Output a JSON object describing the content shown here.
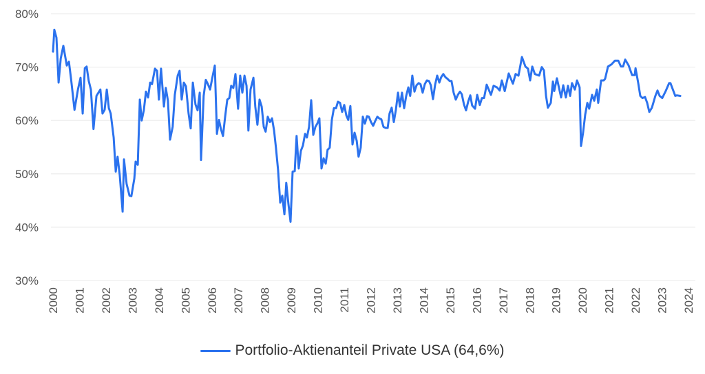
{
  "chart_data": {
    "type": "line",
    "title": "",
    "xlabel": "",
    "ylabel": "",
    "xlim": [
      2000,
      2024
    ],
    "ylim": [
      30,
      80
    ],
    "grid": true,
    "legend_position": "bottom-center",
    "y_ticks": [
      "30%",
      "40%",
      "50%",
      "60%",
      "70%",
      "80%"
    ],
    "y_tick_values": [
      30,
      40,
      50,
      60,
      70,
      80
    ],
    "x_ticks": [
      "2000",
      "2001",
      "2002",
      "2003",
      "2004",
      "2005",
      "2006",
      "2007",
      "2008",
      "2009",
      "2010",
      "2011",
      "2012",
      "2013",
      "2014",
      "2015",
      "2016",
      "2017",
      "2018",
      "2019",
      "2020",
      "2021",
      "2022",
      "2023",
      "2024"
    ],
    "series": [
      {
        "name": "Portfolio-Aktienanteil Private USA (64,6%)",
        "color": "#2b72ee",
        "points": [
          [
            2000.0,
            72.9
          ],
          [
            2000.05,
            77.0
          ],
          [
            2000.13,
            75.5
          ],
          [
            2000.21,
            67.1
          ],
          [
            2000.29,
            71.6
          ],
          [
            2000.39,
            74.0
          ],
          [
            2000.52,
            70.3
          ],
          [
            2000.6,
            71.0
          ],
          [
            2000.68,
            67.8
          ],
          [
            2000.81,
            62.0
          ],
          [
            2000.94,
            65.8
          ],
          [
            2001.04,
            68.0
          ],
          [
            2001.12,
            61.3
          ],
          [
            2001.2,
            69.8
          ],
          [
            2001.27,
            70.1
          ],
          [
            2001.35,
            67.4
          ],
          [
            2001.43,
            65.8
          ],
          [
            2001.53,
            58.4
          ],
          [
            2001.64,
            64.6
          ],
          [
            2001.79,
            65.8
          ],
          [
            2001.87,
            61.3
          ],
          [
            2001.95,
            62.0
          ],
          [
            2002.03,
            65.8
          ],
          [
            2002.11,
            62.3
          ],
          [
            2002.18,
            61.3
          ],
          [
            2002.29,
            56.8
          ],
          [
            2002.37,
            50.4
          ],
          [
            2002.44,
            53.2
          ],
          [
            2002.52,
            49.8
          ],
          [
            2002.63,
            42.9
          ],
          [
            2002.68,
            52.7
          ],
          [
            2002.78,
            48.1
          ],
          [
            2002.89,
            45.9
          ],
          [
            2002.96,
            45.8
          ],
          [
            2003.07,
            49.1
          ],
          [
            2003.12,
            52.3
          ],
          [
            2003.2,
            51.7
          ],
          [
            2003.28,
            63.9
          ],
          [
            2003.35,
            60.0
          ],
          [
            2003.43,
            61.9
          ],
          [
            2003.51,
            65.4
          ],
          [
            2003.59,
            64.3
          ],
          [
            2003.67,
            67.1
          ],
          [
            2003.74,
            66.8
          ],
          [
            2003.85,
            69.7
          ],
          [
            2003.93,
            69.3
          ],
          [
            2004.0,
            63.9
          ],
          [
            2004.08,
            69.7
          ],
          [
            2004.19,
            62.6
          ],
          [
            2004.26,
            66.1
          ],
          [
            2004.34,
            63.7
          ],
          [
            2004.42,
            56.4
          ],
          [
            2004.52,
            58.8
          ],
          [
            2004.6,
            64.8
          ],
          [
            2004.71,
            68.4
          ],
          [
            2004.78,
            69.3
          ],
          [
            2004.86,
            63.9
          ],
          [
            2004.94,
            67.1
          ],
          [
            2005.02,
            66.4
          ],
          [
            2005.12,
            61.3
          ],
          [
            2005.2,
            58.5
          ],
          [
            2005.28,
            67.1
          ],
          [
            2005.38,
            63.0
          ],
          [
            2005.46,
            61.9
          ],
          [
            2005.54,
            65.2
          ],
          [
            2005.59,
            52.6
          ],
          [
            2005.69,
            64.6
          ],
          [
            2005.77,
            67.6
          ],
          [
            2005.85,
            66.8
          ],
          [
            2005.93,
            65.8
          ],
          [
            2006.01,
            67.8
          ],
          [
            2006.11,
            70.3
          ],
          [
            2006.19,
            57.5
          ],
          [
            2006.27,
            60.1
          ],
          [
            2006.34,
            58.4
          ],
          [
            2006.42,
            57.1
          ],
          [
            2006.5,
            60.7
          ],
          [
            2006.58,
            63.9
          ],
          [
            2006.66,
            64.2
          ],
          [
            2006.73,
            66.5
          ],
          [
            2006.81,
            66.1
          ],
          [
            2006.89,
            68.7
          ],
          [
            2006.99,
            62.2
          ],
          [
            2007.07,
            68.4
          ],
          [
            2007.15,
            65.2
          ],
          [
            2007.23,
            68.4
          ],
          [
            2007.31,
            66.5
          ],
          [
            2007.38,
            58.1
          ],
          [
            2007.46,
            65.8
          ],
          [
            2007.57,
            68.0
          ],
          [
            2007.64,
            62.6
          ],
          [
            2007.72,
            59.2
          ],
          [
            2007.8,
            63.9
          ],
          [
            2007.88,
            62.6
          ],
          [
            2007.96,
            58.8
          ],
          [
            2008.03,
            57.9
          ],
          [
            2008.11,
            60.7
          ],
          [
            2008.19,
            59.7
          ],
          [
            2008.27,
            60.4
          ],
          [
            2008.35,
            58.1
          ],
          [
            2008.42,
            54.9
          ],
          [
            2008.5,
            50.7
          ],
          [
            2008.58,
            44.6
          ],
          [
            2008.66,
            45.9
          ],
          [
            2008.74,
            42.4
          ],
          [
            2008.81,
            48.3
          ],
          [
            2008.89,
            44.4
          ],
          [
            2008.97,
            41.0
          ],
          [
            2009.05,
            50.4
          ],
          [
            2009.13,
            50.5
          ],
          [
            2009.2,
            57.1
          ],
          [
            2009.28,
            51.0
          ],
          [
            2009.36,
            54.3
          ],
          [
            2009.44,
            55.3
          ],
          [
            2009.52,
            57.5
          ],
          [
            2009.59,
            56.8
          ],
          [
            2009.67,
            58.8
          ],
          [
            2009.75,
            63.8
          ],
          [
            2009.83,
            57.3
          ],
          [
            2009.91,
            58.8
          ],
          [
            2009.98,
            59.4
          ],
          [
            2010.06,
            60.4
          ],
          [
            2010.14,
            51.0
          ],
          [
            2010.22,
            52.9
          ],
          [
            2010.3,
            51.9
          ],
          [
            2010.37,
            54.5
          ],
          [
            2010.45,
            54.9
          ],
          [
            2010.53,
            60.1
          ],
          [
            2010.61,
            62.3
          ],
          [
            2010.69,
            62.3
          ],
          [
            2010.76,
            63.5
          ],
          [
            2010.84,
            63.3
          ],
          [
            2010.92,
            61.6
          ],
          [
            2011.0,
            62.9
          ],
          [
            2011.08,
            60.9
          ],
          [
            2011.15,
            60.1
          ],
          [
            2011.23,
            62.7
          ],
          [
            2011.31,
            55.5
          ],
          [
            2011.39,
            57.7
          ],
          [
            2011.47,
            56.2
          ],
          [
            2011.54,
            53.2
          ],
          [
            2011.62,
            54.9
          ],
          [
            2011.7,
            60.7
          ],
          [
            2011.78,
            59.4
          ],
          [
            2011.86,
            60.8
          ],
          [
            2011.93,
            60.7
          ],
          [
            2012.01,
            59.7
          ],
          [
            2012.09,
            59.0
          ],
          [
            2012.17,
            59.9
          ],
          [
            2012.25,
            60.7
          ],
          [
            2012.32,
            60.4
          ],
          [
            2012.4,
            60.2
          ],
          [
            2012.48,
            58.8
          ],
          [
            2012.56,
            58.6
          ],
          [
            2012.64,
            58.6
          ],
          [
            2012.71,
            61.3
          ],
          [
            2012.79,
            62.4
          ],
          [
            2012.87,
            59.7
          ],
          [
            2012.95,
            62.0
          ],
          [
            2013.03,
            65.2
          ],
          [
            2013.1,
            62.6
          ],
          [
            2013.18,
            65.2
          ],
          [
            2013.26,
            62.3
          ],
          [
            2013.34,
            64.6
          ],
          [
            2013.42,
            66.2
          ],
          [
            2013.49,
            64.6
          ],
          [
            2013.57,
            68.4
          ],
          [
            2013.65,
            65.4
          ],
          [
            2013.73,
            66.6
          ],
          [
            2013.81,
            67.0
          ],
          [
            2013.88,
            66.8
          ],
          [
            2013.96,
            65.2
          ],
          [
            2014.04,
            66.8
          ],
          [
            2014.12,
            67.5
          ],
          [
            2014.2,
            67.4
          ],
          [
            2014.27,
            66.6
          ],
          [
            2014.35,
            64.0
          ],
          [
            2014.43,
            66.7
          ],
          [
            2014.51,
            68.4
          ],
          [
            2014.59,
            67.1
          ],
          [
            2014.66,
            68.1
          ],
          [
            2014.74,
            68.7
          ],
          [
            2014.82,
            68.1
          ],
          [
            2014.9,
            67.8
          ],
          [
            2014.98,
            67.4
          ],
          [
            2015.05,
            67.4
          ],
          [
            2015.13,
            65.2
          ],
          [
            2015.21,
            63.9
          ],
          [
            2015.29,
            64.8
          ],
          [
            2015.37,
            65.4
          ],
          [
            2015.44,
            64.9
          ],
          [
            2015.52,
            63.0
          ],
          [
            2015.6,
            61.9
          ],
          [
            2015.68,
            63.5
          ],
          [
            2015.76,
            64.7
          ],
          [
            2015.83,
            62.8
          ],
          [
            2015.94,
            62.2
          ],
          [
            2016.02,
            64.8
          ],
          [
            2016.12,
            62.9
          ],
          [
            2016.2,
            64.2
          ],
          [
            2016.28,
            64.2
          ],
          [
            2016.38,
            66.7
          ],
          [
            2016.54,
            64.8
          ],
          [
            2016.64,
            66.5
          ],
          [
            2016.77,
            66.2
          ],
          [
            2016.87,
            65.6
          ],
          [
            2016.95,
            67.5
          ],
          [
            2017.06,
            65.5
          ],
          [
            2017.21,
            68.8
          ],
          [
            2017.37,
            66.9
          ],
          [
            2017.47,
            68.7
          ],
          [
            2017.58,
            68.4
          ],
          [
            2017.71,
            71.9
          ],
          [
            2017.84,
            70.1
          ],
          [
            2017.94,
            69.7
          ],
          [
            2018.02,
            67.5
          ],
          [
            2018.1,
            70.1
          ],
          [
            2018.2,
            68.7
          ],
          [
            2018.36,
            68.4
          ],
          [
            2018.46,
            70.0
          ],
          [
            2018.54,
            69.4
          ],
          [
            2018.62,
            64.6
          ],
          [
            2018.69,
            62.4
          ],
          [
            2018.8,
            63.3
          ],
          [
            2018.88,
            67.3
          ],
          [
            2018.93,
            65.5
          ],
          [
            2019.03,
            67.9
          ],
          [
            2019.19,
            64.3
          ],
          [
            2019.27,
            66.6
          ],
          [
            2019.37,
            64.3
          ],
          [
            2019.45,
            66.5
          ],
          [
            2019.53,
            64.6
          ],
          [
            2019.6,
            67.0
          ],
          [
            2019.71,
            65.8
          ],
          [
            2019.79,
            67.5
          ],
          [
            2019.89,
            66.2
          ],
          [
            2019.94,
            55.2
          ],
          [
            2020.02,
            57.7
          ],
          [
            2020.1,
            61.1
          ],
          [
            2020.18,
            63.3
          ],
          [
            2020.25,
            62.2
          ],
          [
            2020.36,
            64.8
          ],
          [
            2020.44,
            63.7
          ],
          [
            2020.54,
            65.8
          ],
          [
            2020.59,
            63.3
          ],
          [
            2020.7,
            67.5
          ],
          [
            2020.8,
            67.5
          ],
          [
            2020.85,
            67.8
          ],
          [
            2020.96,
            70.1
          ],
          [
            2021.09,
            70.5
          ],
          [
            2021.22,
            71.2
          ],
          [
            2021.35,
            71.2
          ],
          [
            2021.45,
            70.1
          ],
          [
            2021.53,
            70.1
          ],
          [
            2021.61,
            71.4
          ],
          [
            2021.74,
            70.3
          ],
          [
            2021.87,
            68.5
          ],
          [
            2021.97,
            68.5
          ],
          [
            2022.0,
            69.8
          ],
          [
            2022.1,
            67.1
          ],
          [
            2022.18,
            64.6
          ],
          [
            2022.26,
            64.2
          ],
          [
            2022.36,
            64.4
          ],
          [
            2022.44,
            63.3
          ],
          [
            2022.52,
            61.6
          ],
          [
            2022.62,
            62.4
          ],
          [
            2022.75,
            64.6
          ],
          [
            2022.83,
            65.6
          ],
          [
            2022.91,
            64.6
          ],
          [
            2023.01,
            64.2
          ],
          [
            2023.14,
            65.5
          ],
          [
            2023.27,
            67.0
          ],
          [
            2023.32,
            67.0
          ],
          [
            2023.5,
            64.6
          ],
          [
            2023.56,
            64.7
          ],
          [
            2023.69,
            64.6
          ]
        ]
      }
    ]
  },
  "legend": {
    "label": "Portfolio-Aktienanteil Private USA (64,6%)"
  }
}
